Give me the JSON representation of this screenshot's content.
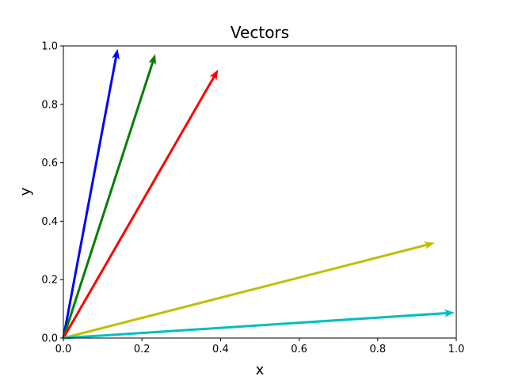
{
  "chart_data": {
    "type": "quiver",
    "title": "Vectors",
    "xlabel": "x",
    "ylabel": "y",
    "xlim": [
      0.0,
      1.0
    ],
    "ylim": [
      0.0,
      1.0
    ],
    "xticks": [
      "0.0",
      "0.2",
      "0.4",
      "0.6",
      "0.8",
      "1.0"
    ],
    "yticks": [
      "0.0",
      "0.2",
      "0.4",
      "0.6",
      "0.8",
      "1.0"
    ],
    "grid": false,
    "vectors": [
      {
        "x0": 0,
        "y0": 0,
        "x1": 0.138,
        "y1": 0.99,
        "color": "#0000ff"
      },
      {
        "x0": 0,
        "y0": 0,
        "x1": 0.234,
        "y1": 0.972,
        "color": "#008000"
      },
      {
        "x0": 0,
        "y0": 0,
        "x1": 0.394,
        "y1": 0.919,
        "color": "#ff0000"
      },
      {
        "x0": 0,
        "y0": 0,
        "x1": 0.945,
        "y1": 0.326,
        "color": "#bfbf00"
      },
      {
        "x0": 0,
        "y0": 0,
        "x1": 0.996,
        "y1": 0.087,
        "color": "#00bfbf"
      }
    ]
  }
}
